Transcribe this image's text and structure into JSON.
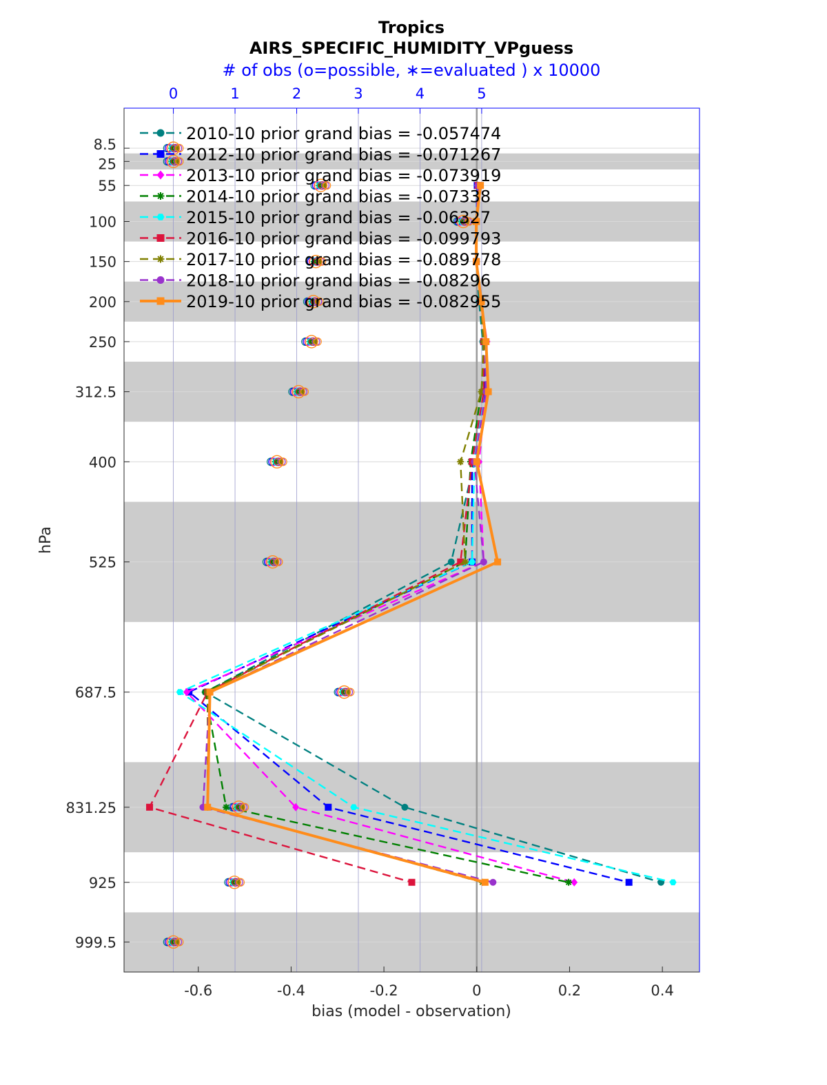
{
  "chart_data": {
    "type": "line",
    "title": "Tropics",
    "subtitle": "AIRS_SPECIFIC_HUMIDITY_VPguess",
    "top_axis_label": "# of obs (o=possible, ∗=evaluated ) x 10000",
    "xlabel": "bias (model - observation)",
    "ylabel": "hPa",
    "xlim": [
      -0.76,
      0.48
    ],
    "x_ticks": [
      "-0.6",
      "-0.4",
      "-0.2",
      "0",
      "0.2",
      "0.4"
    ],
    "x_tick_values": [
      -0.6,
      -0.4,
      -0.2,
      0,
      0.2,
      0.4
    ],
    "top_xlim": [
      -0.8,
      8.533
    ],
    "top_ticks": [
      "0",
      "1",
      "2",
      "3",
      "4",
      "5"
    ],
    "top_tick_values": [
      0,
      1,
      2,
      3,
      4,
      5
    ],
    "levels": [
      8.5,
      25,
      55,
      100,
      150,
      200,
      250,
      312.5,
      400,
      525,
      687.5,
      831.25,
      925,
      999.5
    ],
    "level_labels": [
      "8.5",
      "25",
      "55",
      "100",
      "150",
      "200",
      "250",
      "312.5",
      "400",
      "525",
      "687.5",
      "831.25",
      "925",
      "999.5"
    ],
    "level_axis_scale": "linear, reversed",
    "shaded_bands_hPa": [
      [
        15,
        35
      ],
      [
        75,
        125
      ],
      [
        175,
        225
      ],
      [
        275,
        350
      ],
      [
        450,
        600
      ],
      [
        775,
        887.5
      ],
      [
        962.5,
        1037
      ]
    ],
    "grid": true,
    "legend_position": "top-left",
    "series": [
      {
        "name": "2010-10 prior grand bias = -0.057474",
        "color": "#008080",
        "marker": "circle",
        "style": "dashed",
        "bias": {
          "55": 0.001,
          "100": -0.001,
          "150": -0.001,
          "200": 0.005,
          "250": 0.013,
          "312.5": 0.015,
          "400": -0.005,
          "525": -0.055,
          "687.5": -0.585,
          "831.25": -0.155,
          "925": 0.397
        },
        "nobs_possible": {
          "8.5": 0.0,
          "25": 0.0,
          "55": 2.39,
          "100": 4.7,
          "150": 2.31,
          "200": 2.27,
          "250": 2.24,
          "312.5": 2.03,
          "400": 1.68,
          "525": 1.61,
          "687.5": 2.77,
          "831.25": 1.06,
          "925": 0.99,
          "999.5": 0.0
        }
      },
      {
        "name": "2012-10 prior grand bias = -0.071267",
        "color": "#0000ff",
        "marker": "square",
        "style": "dashed",
        "bias": {
          "55": 0.001,
          "100": -0.001,
          "150": -0.001,
          "200": 0.008,
          "250": 0.015,
          "312.5": 0.017,
          "400": -0.01,
          "525": -0.01,
          "687.5": -0.62,
          "831.25": -0.32,
          "925": 0.328
        }
      },
      {
        "name": "2013-10 prior grand bias = -0.073919",
        "color": "#ff00ff",
        "marker": "diamond",
        "style": "dashed",
        "bias": {
          "55": 0.003,
          "100": -0.001,
          "150": -0.001,
          "200": 0.01,
          "250": 0.022,
          "312.5": 0.02,
          "400": 0.005,
          "525": 0.015,
          "687.5": -0.625,
          "831.25": -0.39,
          "925": 0.21
        }
      },
      {
        "name": "2014-10 prior grand bias = -0.07338",
        "color": "#008000",
        "marker": "star",
        "style": "dashed",
        "bias": {
          "55": 0.003,
          "100": -0.001,
          "150": -0.001,
          "200": 0.01,
          "250": 0.017,
          "312.5": 0.01,
          "400": -0.013,
          "525": -0.025,
          "687.5": -0.585,
          "831.25": -0.54,
          "925": 0.198
        }
      },
      {
        "name": "2015-10 prior grand bias = -0.06327",
        "color": "#00ffff",
        "marker": "hexagon",
        "style": "dashed",
        "bias": {
          "55": 0.002,
          "100": -0.001,
          "150": -0.001,
          "200": 0.008,
          "250": 0.015,
          "312.5": 0.015,
          "400": -0.005,
          "525": -0.01,
          "687.5": -0.64,
          "831.25": -0.265,
          "925": 0.423
        }
      },
      {
        "name": "2016-10 prior grand bias = -0.099793",
        "color": "#dc143c",
        "marker": "square",
        "style": "dashed",
        "bias": {
          "55": 0.003,
          "100": -0.001,
          "150": -0.001,
          "200": 0.008,
          "250": 0.015,
          "312.5": 0.015,
          "400": -0.01,
          "525": -0.035,
          "687.5": -0.58,
          "831.25": -0.705,
          "925": -0.14
        }
      },
      {
        "name": "2017-10 prior grand bias = -0.089778",
        "color": "#808000",
        "marker": "star",
        "style": "dashed",
        "bias": {
          "55": 0.003,
          "100": -0.001,
          "150": -0.001,
          "200": 0.008,
          "250": 0.015,
          "312.5": 0.01,
          "400": -0.035,
          "525": -0.025,
          "687.5": -0.58,
          "831.25": -0.58,
          "925": 0.012
        }
      },
      {
        "name": "2018-10 prior grand bias = -0.08296",
        "color": "#9932cc",
        "marker": "circle",
        "style": "dashed",
        "bias": {
          "55": 0.003,
          "100": -0.001,
          "150": -0.001,
          "200": 0.01,
          "250": 0.02,
          "312.5": 0.02,
          "400": -0.005,
          "525": 0.015,
          "687.5": -0.575,
          "831.25": -0.59,
          "925": 0.035
        }
      },
      {
        "name": "2019-10 prior grand bias = -0.082955",
        "color": "#ff8c1a",
        "marker": "square",
        "style": "solid",
        "bias": {
          "55": 0.008,
          "100": -0.001,
          "150": -0.001,
          "200": 0.01,
          "250": 0.02,
          "312.5": 0.025,
          "400": 0.0,
          "525": 0.045,
          "687.5": -0.575,
          "831.25": -0.58,
          "925": 0.018
        },
        "nobs_possible": {
          "8.5": 0.0,
          "25": 0.0,
          "55": 2.39,
          "100": 4.7,
          "150": 2.31,
          "200": 2.27,
          "250": 2.24,
          "312.5": 2.03,
          "400": 1.68,
          "525": 1.61,
          "687.5": 2.77,
          "831.25": 1.06,
          "925": 0.99,
          "999.5": 0.0
        }
      }
    ]
  }
}
